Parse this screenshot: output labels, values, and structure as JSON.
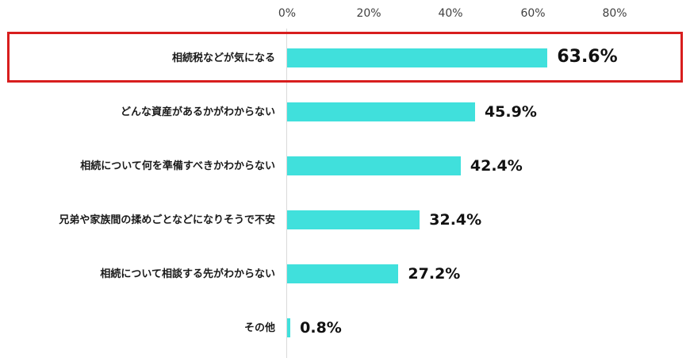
{
  "chart_data": {
    "type": "bar",
    "orientation": "horizontal",
    "title": "",
    "xlabel": "",
    "ylabel": "",
    "x_ticks": [
      "0%",
      "20%",
      "40%",
      "60%",
      "80%"
    ],
    "xlim": [
      0,
      80
    ],
    "grid": false,
    "categories": [
      "相続税などが気になる",
      "どんな資産があるかがわからない",
      "相続について何を準備すべきかわからない",
      "兄弟や家族間の揉めごとなどになりそうで不安",
      "相続について相談する先がわからない",
      "その他"
    ],
    "values": [
      63.6,
      45.9,
      42.4,
      32.4,
      27.2,
      0.8
    ],
    "value_labels": [
      "63.6%",
      "45.9%",
      "42.4%",
      "32.4%",
      "27.2%",
      "0.8%"
    ],
    "bar_color": "#40e0dc",
    "highlighted_category": "相続税などが気になる",
    "highlight_color": "#d81e1e"
  },
  "axis": {
    "ticks": [
      {
        "label": "0%",
        "value": 0
      },
      {
        "label": "20%",
        "value": 20
      },
      {
        "label": "40%",
        "value": 40
      },
      {
        "label": "60%",
        "value": 60
      },
      {
        "label": "80%",
        "value": 80
      }
    ]
  },
  "rows": [
    {
      "label": "相続税などが気になる",
      "value": 63.6,
      "value_label": "63.6%"
    },
    {
      "label": "どんな資産があるかがわからない",
      "value": 45.9,
      "value_label": "45.9%"
    },
    {
      "label": "相続について何を準備すべきかわからない",
      "value": 42.4,
      "value_label": "42.4%"
    },
    {
      "label": "兄弟や家族間の揉めごとなどになりそうで不安",
      "value": 32.4,
      "value_label": "32.4%"
    },
    {
      "label": "相続について相談する先がわからない",
      "value": 27.2,
      "value_label": "27.2%"
    },
    {
      "label": "その他",
      "value": 0.8,
      "value_label": "0.8%"
    }
  ]
}
